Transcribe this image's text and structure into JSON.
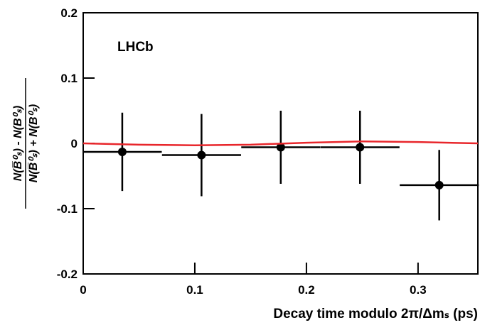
{
  "chart_data": {
    "type": "scatter",
    "x_label": "Decay time modulo 2π/Δmₛ (ps)",
    "y_label": [
      "N(B̅⁰ₛ) - N(B⁰ₛ)",
      "N(B̅⁰ₛ) + N(B⁰ₛ)"
    ],
    "annotation": "LHCb",
    "xlim": [
      0,
      0.3536
    ],
    "ylim": [
      -0.2,
      0.2
    ],
    "xticks": [
      0,
      0.1,
      0.2,
      0.3
    ],
    "yticks": [
      -0.2,
      -0.1,
      0,
      0.1,
      0.2
    ],
    "series": [
      {
        "type": "scatter",
        "color": "#000000",
        "x": [
          0.035,
          0.106,
          0.177,
          0.248,
          0.319
        ],
        "values": [
          -0.013,
          -0.018,
          -0.006,
          -0.006,
          -0.064
        ],
        "xerr": [
          0.0354,
          0.0354,
          0.0354,
          0.0354,
          0.0354
        ],
        "yerr": [
          0.06,
          0.063,
          0.056,
          0.056,
          0.054
        ]
      },
      {
        "type": "line",
        "color": "#e8262b",
        "x": [
          0,
          0.05,
          0.1,
          0.15,
          0.2,
          0.25,
          0.3,
          0.3536
        ],
        "values": [
          0,
          -0.002,
          -0.003,
          -0.002,
          0.001,
          0.003,
          0.002,
          0
        ]
      }
    ]
  }
}
